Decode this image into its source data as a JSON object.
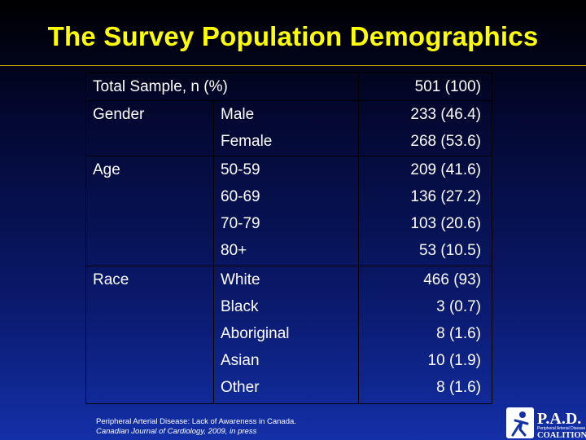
{
  "title": "The Survey Population Demographics",
  "table": {
    "total_label": "Total Sample, n (%)",
    "total_value": "501 (100)",
    "groups": [
      {
        "name": "Gender",
        "rows": [
          {
            "label": "Male",
            "value": "233 (46.4)"
          },
          {
            "label": "Female",
            "value": "268 (53.6)"
          }
        ]
      },
      {
        "name": "Age",
        "rows": [
          {
            "label": "50-59",
            "value": "209 (41.6)"
          },
          {
            "label": "60-69",
            "value": "136 (27.2)"
          },
          {
            "label": "70-79",
            "value": "103 (20.6)"
          },
          {
            "label": "80+",
            "value": "53 (10.5)"
          }
        ]
      },
      {
        "name": "Race",
        "rows": [
          {
            "label": "White",
            "value": "466 (93)"
          },
          {
            "label": "Black",
            "value": "3 (0.7)"
          },
          {
            "label": "Aboriginal",
            "value": "8 (1.6)"
          },
          {
            "label": "Asian",
            "value": "10 (1.9)"
          },
          {
            "label": "Other",
            "value": "8 (1.6)"
          }
        ]
      }
    ]
  },
  "citation": {
    "line1": "Peripheral Arterial Disease:  Lack of Awareness in Canada.",
    "line2": "Canadian Journal of Cardiology, 2009, in press"
  },
  "logo": {
    "name": "P.A.D.",
    "tagline": "Peripheral Arterial Disease",
    "word": "COALITION"
  },
  "colors": {
    "title": "#ffff00",
    "text": "#ffffff",
    "rule": "#c8b000"
  }
}
